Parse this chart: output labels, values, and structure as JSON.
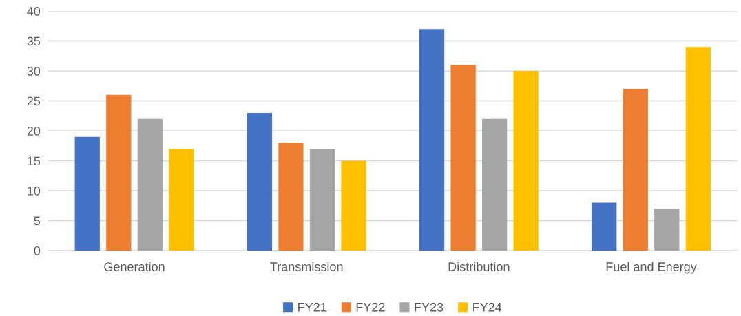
{
  "chart_data": {
    "type": "bar",
    "categories": [
      "Generation",
      "Transmission",
      "Distribution",
      "Fuel and Energy"
    ],
    "series": [
      {
        "name": "FY21",
        "color": "#4472c4",
        "values": [
          19,
          23,
          37,
          8
        ]
      },
      {
        "name": "FY22",
        "color": "#ed7d31",
        "values": [
          26,
          18,
          31,
          27
        ]
      },
      {
        "name": "FY23",
        "color": "#a5a5a5",
        "values": [
          22,
          17,
          22,
          7
        ]
      },
      {
        "name": "FY24",
        "color": "#ffc000",
        "values": [
          17,
          15,
          30,
          34
        ]
      }
    ],
    "ylim": [
      0,
      40
    ],
    "yticks": [
      0,
      5,
      10,
      15,
      20,
      25,
      30,
      35,
      40
    ],
    "grid": "y",
    "legend": "bottom"
  }
}
